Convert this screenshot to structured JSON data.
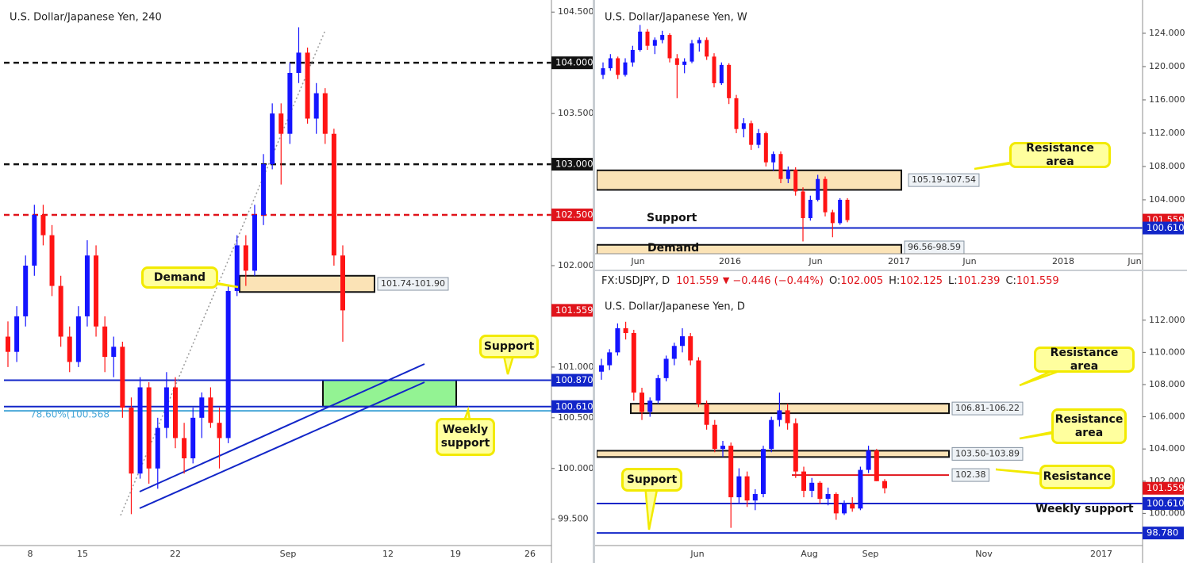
{
  "chart_data": [
    {
      "type": "candlestick",
      "title": "U.S. Dollar/Japanese Yen, 240",
      "up_color": "#1414ff",
      "down_color": "#ff1414",
      "x_labels": [
        "8",
        "15",
        "22",
        "Sep",
        "12",
        "19",
        "26"
      ],
      "ylim": [
        99.24,
        104.58
      ],
      "yticks": [
        {
          "value": 99.5,
          "label": "99.500"
        },
        {
          "value": 100,
          "label": "100.000"
        },
        {
          "value": 100.5,
          "label": "100.500"
        },
        {
          "value": 101,
          "label": "101.000"
        },
        {
          "value": 102,
          "label": "102.000"
        },
        {
          "value": 103.5,
          "label": "103.500"
        },
        {
          "value": 104.5,
          "label": "104.500"
        }
      ],
      "candles": [
        [
          101.3,
          101.45,
          101.0,
          101.15
        ],
        [
          101.15,
          101.6,
          101.05,
          101.5
        ],
        [
          101.5,
          102.1,
          101.4,
          102.0
        ],
        [
          102.0,
          102.6,
          101.9,
          102.5
        ],
        [
          102.5,
          102.6,
          102.2,
          102.3
        ],
        [
          102.3,
          102.4,
          101.7,
          101.8
        ],
        [
          101.8,
          101.9,
          101.2,
          101.3
        ],
        [
          101.3,
          101.4,
          100.95,
          101.05
        ],
        [
          101.05,
          101.6,
          101.0,
          101.5
        ],
        [
          101.5,
          102.25,
          101.4,
          102.1
        ],
        [
          102.1,
          102.2,
          101.3,
          101.4
        ],
        [
          101.4,
          101.5,
          100.95,
          101.1
        ],
        [
          101.1,
          101.3,
          100.9,
          101.2
        ],
        [
          101.2,
          101.25,
          100.5,
          100.6
        ],
        [
          100.6,
          100.7,
          99.55,
          99.95
        ],
        [
          99.95,
          100.9,
          99.9,
          100.8
        ],
        [
          100.8,
          100.85,
          99.85,
          100.0
        ],
        [
          100.0,
          100.5,
          99.8,
          100.4
        ],
        [
          100.4,
          100.95,
          100.3,
          100.8
        ],
        [
          100.8,
          100.9,
          100.2,
          100.3
        ],
        [
          100.3,
          100.45,
          99.95,
          100.1
        ],
        [
          100.1,
          100.6,
          100.05,
          100.5
        ],
        [
          100.5,
          100.75,
          100.3,
          100.7
        ],
        [
          100.7,
          100.8,
          100.4,
          100.45
        ],
        [
          100.45,
          100.6,
          100.0,
          100.3
        ],
        [
          100.3,
          101.8,
          100.25,
          101.75
        ],
        [
          101.75,
          102.3,
          101.7,
          102.2
        ],
        [
          102.2,
          102.3,
          101.8,
          101.95
        ],
        [
          101.95,
          102.6,
          101.9,
          102.5
        ],
        [
          102.5,
          103.1,
          102.4,
          103.0
        ],
        [
          103.0,
          103.6,
          102.95,
          103.5
        ],
        [
          103.5,
          103.6,
          102.8,
          103.3
        ],
        [
          103.3,
          104.0,
          103.2,
          103.9
        ],
        [
          103.9,
          104.35,
          103.8,
          104.1
        ],
        [
          104.1,
          104.15,
          103.4,
          103.45
        ],
        [
          103.45,
          103.8,
          103.3,
          103.7
        ],
        [
          103.7,
          103.75,
          103.2,
          103.3
        ],
        [
          103.3,
          103.35,
          102.0,
          102.1
        ],
        [
          102.1,
          102.2,
          101.25,
          101.559
        ]
      ],
      "price_tags": [
        {
          "value": 104,
          "label": "104.000",
          "color": "#111111"
        },
        {
          "value": 103,
          "label": "103.000",
          "color": "#111111"
        },
        {
          "value": 102.5,
          "label": "102.500",
          "color": "#e0141b"
        },
        {
          "value": 101.559,
          "label": "101.559",
          "color": "#e0141b"
        },
        {
          "value": 100.87,
          "label": "100.870",
          "color": "#1226c8"
        },
        {
          "value": 100.61,
          "label": "100.610",
          "color": "#1226c8"
        }
      ],
      "levels": [
        {
          "value": 104,
          "color": "#111111",
          "style": "dashed"
        },
        {
          "value": 103,
          "color": "#111111",
          "style": "dashed"
        },
        {
          "value": 102.5,
          "color": "#e0141b",
          "style": "dashed"
        },
        {
          "value": 100.87,
          "color": "#1226c8",
          "style": "solid"
        },
        {
          "value": 100.61,
          "color": "#1226c8",
          "style": "solid"
        },
        {
          "value": 100.568,
          "color": "#4aa8d8",
          "style": "solid",
          "label": "78.60%(100.568"
        }
      ],
      "zones": [
        {
          "low": 101.74,
          "high": 101.9,
          "label": "101.74-101.90",
          "color": "#fbe3b6"
        },
        {
          "low": 100.61,
          "high": 100.87,
          "color": "#93f393"
        }
      ],
      "annotations": [
        "Demand",
        "Support",
        "Weekly support"
      ]
    },
    {
      "type": "candlestick",
      "title": "U.S. Dollar/Japanese Yen, W",
      "up_color": "#1414ff",
      "down_color": "#ff1414",
      "x_labels": [
        "Jun",
        "2016",
        "Jun",
        "2017",
        "Jun",
        "2018",
        "Jun"
      ],
      "ylim": [
        97.52,
        127.52
      ],
      "yticks": [
        {
          "value": 104,
          "label": "104.000"
        },
        {
          "value": 108,
          "label": "108.000"
        },
        {
          "value": 112,
          "label": "112.000"
        },
        {
          "value": 116,
          "label": "116.000"
        },
        {
          "value": 120,
          "label": "120.000"
        },
        {
          "value": 124,
          "label": "124.000"
        }
      ],
      "candles": [
        [
          119.0,
          120.5,
          118.5,
          119.8
        ],
        [
          119.8,
          121.5,
          119.5,
          121.0
        ],
        [
          121.0,
          121.2,
          118.5,
          119.0
        ],
        [
          119.0,
          121.0,
          118.8,
          120.5
        ],
        [
          120.5,
          122.5,
          120.0,
          122.0
        ],
        [
          122.0,
          125.0,
          121.8,
          124.2
        ],
        [
          124.2,
          124.5,
          122.0,
          122.5
        ],
        [
          122.5,
          123.5,
          121.5,
          123.2
        ],
        [
          123.2,
          124.3,
          122.8,
          123.8
        ],
        [
          123.8,
          124.0,
          120.5,
          121.0
        ],
        [
          121.0,
          121.5,
          116.2,
          120.2
        ],
        [
          120.2,
          121.0,
          119.2,
          120.6
        ],
        [
          120.6,
          123.2,
          120.4,
          122.8
        ],
        [
          122.8,
          123.5,
          121.8,
          123.2
        ],
        [
          123.2,
          123.5,
          120.8,
          121.2
        ],
        [
          121.2,
          121.6,
          117.5,
          118.0
        ],
        [
          118.0,
          120.5,
          117.8,
          120.2
        ],
        [
          120.2,
          120.4,
          115.5,
          116.2
        ],
        [
          116.2,
          116.6,
          112.0,
          112.5
        ],
        [
          112.5,
          113.8,
          111.5,
          113.2
        ],
        [
          113.2,
          113.5,
          110.0,
          110.6
        ],
        [
          110.6,
          112.5,
          110.2,
          112.0
        ],
        [
          112.0,
          112.2,
          108.0,
          108.5
        ],
        [
          108.5,
          109.8,
          107.5,
          109.5
        ],
        [
          109.5,
          109.8,
          106.0,
          106.5
        ],
        [
          106.5,
          108.0,
          106.0,
          107.6
        ],
        [
          107.6,
          107.9,
          104.5,
          105.0
        ],
        [
          105.0,
          105.5,
          99.0,
          101.8
        ],
        [
          101.8,
          104.5,
          101.5,
          104.0
        ],
        [
          104.0,
          107.0,
          103.8,
          106.5
        ],
        [
          106.5,
          106.8,
          102.0,
          102.5
        ],
        [
          102.5,
          102.8,
          99.5,
          101.2
        ],
        [
          101.2,
          104.2,
          101.0,
          104.0
        ],
        [
          104.0,
          104.2,
          101.3,
          101.559
        ]
      ],
      "price_tags": [
        {
          "value": 101.559,
          "label": "101.559",
          "color": "#e0141b"
        },
        {
          "value": 100.61,
          "label": "100.610",
          "color": "#1226c8"
        }
      ],
      "levels": [
        {
          "value": 100.61,
          "color": "#1226c8",
          "style": "solid"
        }
      ],
      "zones": [
        {
          "low": 105.19,
          "high": 107.54,
          "label": "105.19-107.54",
          "color": "#fbe3b6"
        },
        {
          "low": 96.56,
          "high": 98.59,
          "label": "96.56-98.59",
          "color": "#fbe3b6"
        }
      ],
      "annotations": [
        "Resistance area",
        "Support",
        "Demand"
      ]
    },
    {
      "type": "candlestick",
      "title": "U.S. Dollar/Japanese Yen, D",
      "up_color": "#1414ff",
      "down_color": "#ff1414",
      "header": {
        "symbol": "FX:USDJPY, D",
        "last": 101.559,
        "arrow": "▼",
        "change": "−0.446 (−0.44%)",
        "ohlc": [
          {
            "label": "O:",
            "value": 102.005
          },
          {
            "label": "H:",
            "value": 102.125
          },
          {
            "label": "L:",
            "value": 101.239
          },
          {
            "label": "C:",
            "value": 101.559
          }
        ]
      },
      "x_labels": [
        "Jun",
        "Aug",
        "Sep",
        "Nov",
        "2017"
      ],
      "ylim": [
        98.0,
        113.86
      ],
      "yticks": [
        {
          "value": 100,
          "label": "100.000"
        },
        {
          "value": 102,
          "label": "102.000"
        },
        {
          "value": 104,
          "label": "104.000"
        },
        {
          "value": 106,
          "label": "106.000"
        },
        {
          "value": 108,
          "label": "108.000"
        },
        {
          "value": 110,
          "label": "110.000"
        },
        {
          "value": 112,
          "label": "112.000"
        }
      ],
      "candles": [
        [
          108.8,
          109.6,
          108.3,
          109.2
        ],
        [
          109.2,
          110.2,
          108.9,
          110.0
        ],
        [
          110.0,
          111.8,
          109.8,
          111.5
        ],
        [
          111.5,
          111.9,
          110.8,
          111.2
        ],
        [
          111.2,
          111.4,
          107.0,
          107.5
        ],
        [
          107.5,
          107.8,
          105.8,
          106.3
        ],
        [
          106.3,
          107.2,
          106.0,
          107.0
        ],
        [
          107.0,
          108.6,
          106.8,
          108.4
        ],
        [
          108.4,
          109.8,
          108.2,
          109.6
        ],
        [
          109.6,
          110.6,
          109.2,
          110.4
        ],
        [
          110.4,
          111.5,
          110.0,
          111.0
        ],
        [
          111.0,
          111.2,
          109.2,
          109.5
        ],
        [
          109.5,
          109.7,
          106.6,
          106.8
        ],
        [
          106.8,
          107.0,
          105.2,
          105.5
        ],
        [
          105.5,
          105.8,
          103.8,
          104.0
        ],
        [
          104.0,
          104.5,
          103.5,
          104.2
        ],
        [
          104.2,
          104.4,
          99.1,
          101.0
        ],
        [
          101.0,
          102.8,
          100.6,
          102.3
        ],
        [
          102.3,
          102.6,
          100.4,
          100.8
        ],
        [
          100.8,
          101.5,
          100.2,
          101.2
        ],
        [
          101.2,
          104.2,
          101.0,
          104.0
        ],
        [
          104.0,
          106.0,
          103.8,
          105.8
        ],
        [
          105.8,
          107.5,
          105.4,
          106.4
        ],
        [
          106.4,
          106.8,
          105.2,
          105.6
        ],
        [
          105.6,
          105.9,
          102.2,
          102.6
        ],
        [
          102.6,
          102.9,
          101.0,
          101.4
        ],
        [
          101.4,
          102.2,
          101.0,
          101.9
        ],
        [
          101.9,
          102.0,
          100.6,
          100.9
        ],
        [
          100.9,
          101.6,
          100.5,
          101.2
        ],
        [
          101.2,
          101.3,
          99.6,
          100.0
        ],
        [
          100.0,
          100.8,
          99.9,
          100.6
        ],
        [
          100.6,
          101.0,
          100.1,
          100.3
        ],
        [
          100.3,
          102.9,
          100.2,
          102.7
        ],
        [
          102.7,
          104.2,
          102.5,
          103.9
        ],
        [
          103.9,
          104.0,
          102.0,
          102.0
        ],
        [
          102.005,
          102.125,
          101.239,
          101.559
        ]
      ],
      "price_tags": [
        {
          "value": 101.559,
          "label": "101.559",
          "color": "#e0141b"
        },
        {
          "value": 100.61,
          "label": "100.610",
          "color": "#1226c8"
        },
        {
          "value": 98.78,
          "label": "98.780",
          "color": "#1226c8"
        }
      ],
      "levels": [
        {
          "value": 102.38,
          "color": "#e0141b",
          "style": "solid",
          "label": "102.38"
        },
        {
          "value": 100.61,
          "color": "#1226c8",
          "style": "solid"
        },
        {
          "value": 98.78,
          "color": "#1226c8",
          "style": "solid"
        }
      ],
      "zones": [
        {
          "low": 106.22,
          "high": 106.81,
          "label": "106.81-106.22",
          "color": "#fbe3b6"
        },
        {
          "low": 103.5,
          "high": 103.89,
          "label": "103.50-103.89",
          "color": "#fbe3b6"
        }
      ],
      "annotations": [
        "Resistance area",
        "Resistance area",
        "Resistance",
        "Support",
        "Weekly support"
      ]
    }
  ]
}
